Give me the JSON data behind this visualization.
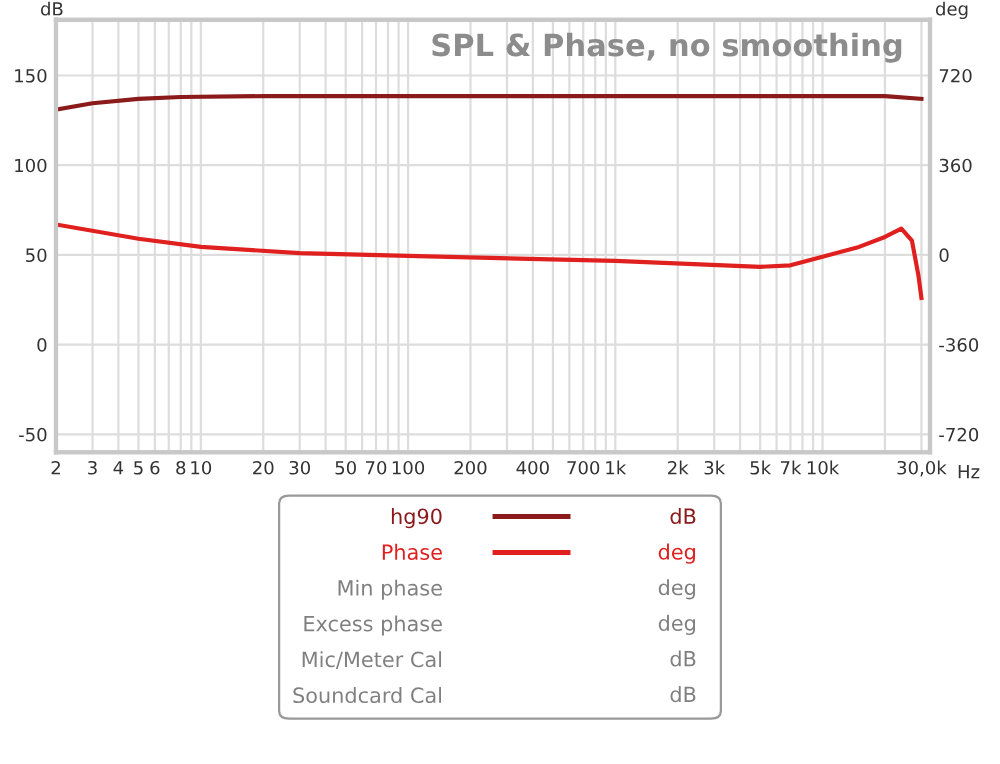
{
  "chart_data": {
    "type": "line",
    "title": "SPL & Phase, no smoothing",
    "xlabel": "Hz",
    "ylabel": "dB",
    "y2label": "deg",
    "x": [
      2,
      3,
      5,
      8,
      20,
      100,
      1000,
      10000,
      20000,
      30000
    ],
    "series": [
      {
        "name": "hg90",
        "color": "#8b1a1a",
        "values": [
          131,
          134.5,
          137,
          138,
          138.5,
          138.5,
          138.5,
          138.5,
          138.5,
          137
        ]
      },
      {
        "name": "Phase",
        "color": "#e0201e",
        "axis": "y2",
        "x": [
          2,
          5,
          10,
          30,
          100,
          1000,
          5000,
          7000,
          10000,
          15000,
          20000,
          24000,
          27000,
          29000,
          30000
        ],
        "values": [
          122,
          65,
          32,
          7,
          -4,
          -24,
          -48,
          -42,
          -7,
          32,
          72,
          105,
          57,
          -81,
          -173
        ]
      },
      {
        "name": "Min phase",
        "color": "#a0a0a0",
        "values": [
          null,
          null,
          null,
          null,
          null,
          null,
          null,
          null,
          null,
          null
        ]
      },
      {
        "name": "Excess phase",
        "color": "#a0a0a0",
        "values": [
          null,
          null,
          null,
          null,
          null,
          null,
          null,
          null,
          null,
          null
        ]
      },
      {
        "name": "Mic/Meter Cal",
        "color": "#a0a0a0",
        "values": [
          null,
          null,
          null,
          null,
          null,
          null,
          null,
          null,
          null,
          null
        ]
      },
      {
        "name": "Soundcard Cal",
        "color": "#a0a0a0",
        "values": [
          null,
          null,
          null,
          null,
          null,
          null,
          null,
          null,
          null,
          null
        ]
      }
    ],
    "annotations": [
      "dB",
      "deg",
      "deg",
      "deg",
      "dB",
      "dB"
    ],
    "log": "x",
    "xlim": [
      2,
      33000
    ],
    "xticks": [
      2,
      3,
      4,
      5,
      6,
      {
        "value": 7,
        "label": null
      },
      8,
      {
        "value": 9,
        "label": null
      },
      10,
      20,
      30,
      {
        "value": 40,
        "label": null
      },
      50,
      {
        "value": 60,
        "label": null
      },
      70,
      {
        "value": 80,
        "label": null
      },
      {
        "value": 90,
        "label": null
      },
      100,
      200,
      {
        "value": 300,
        "label": null
      },
      400,
      {
        "value": 500,
        "label": null
      },
      {
        "value": 600,
        "label": null
      },
      700,
      {
        "value": 800,
        "label": null
      },
      {
        "value": 900,
        "label": null
      },
      {
        "value": 1000,
        "label": "1k"
      },
      {
        "value": 2000,
        "label": "2k"
      },
      {
        "value": 3000,
        "label": "3k"
      },
      {
        "value": 4000,
        "label": null
      },
      {
        "value": 5000,
        "label": "5k"
      },
      {
        "value": 6000,
        "label": null
      },
      {
        "value": 7000,
        "label": "7k"
      },
      {
        "value": 8000,
        "label": null
      },
      {
        "value": 9000,
        "label": null
      },
      {
        "value": 10000,
        "label": "10k"
      },
      {
        "value": 20000,
        "label": null
      },
      {
        "value": 30000,
        "label": "30,0k"
      }
    ],
    "ylim": [
      -60,
      181
    ],
    "yticks": [
      -50,
      0,
      50,
      100,
      150
    ],
    "y2lim": [
      -792,
      943
    ],
    "y2ticks": [
      -720,
      -360,
      0,
      360,
      720
    ],
    "grid": true,
    "legend": "bottom",
    "line_style": "solid",
    "marker": "none"
  }
}
